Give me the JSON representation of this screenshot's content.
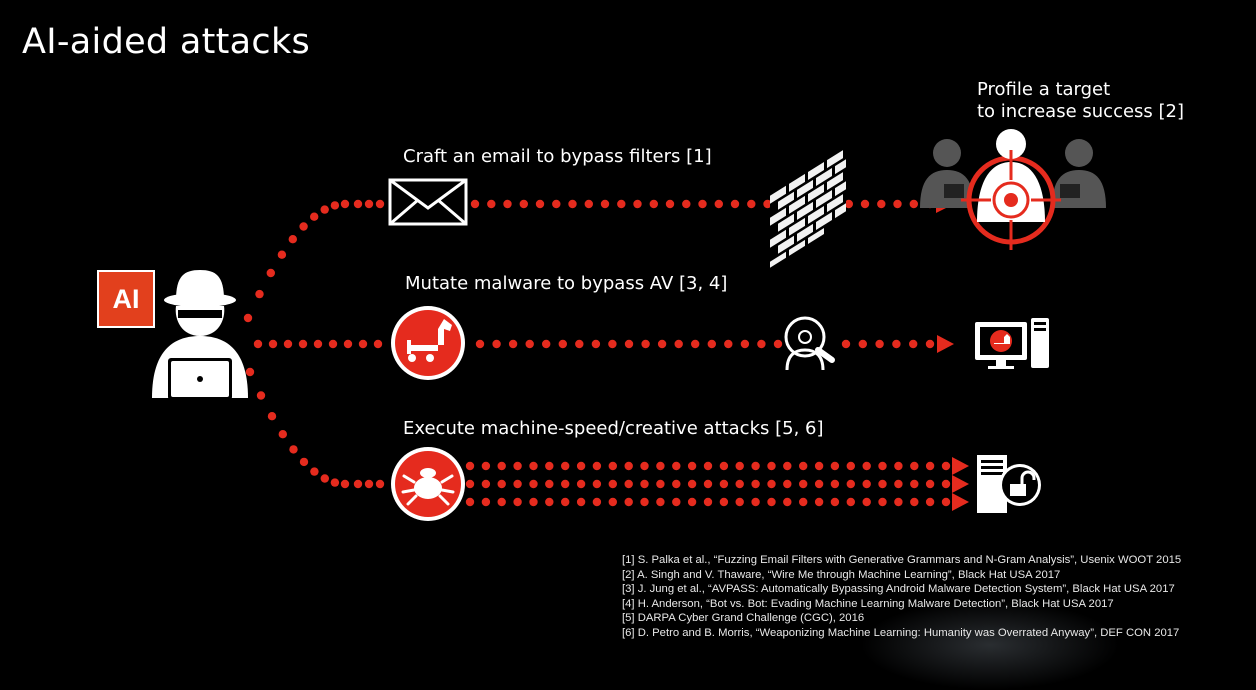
{
  "title": "AI-aided attacks",
  "badge": "AI",
  "paths": {
    "email": "Craft an email to bypass filters [1]",
    "profile_line1": "Profile a target",
    "profile_line2": "to increase success [2]",
    "malware": "Mutate malware to bypass AV [3, 4]",
    "execute": "Execute machine-speed/creative attacks [5, 6]"
  },
  "icons": {
    "attacker": "hacker-icon",
    "email": "envelope-icon",
    "firewall": "firewall-icon",
    "target": "target-profile-icon",
    "malware": "trojan-horse-icon",
    "scanner": "antivirus-scan-icon",
    "victim_pc": "infected-computer-icon",
    "bug": "bug-icon",
    "server": "unlocked-server-icon"
  },
  "colors": {
    "accent": "#e52b1e",
    "badge": "#e2401d",
    "background": "#000000"
  },
  "references": [
    "[1] S. Palka et al., “Fuzzing Email Filters with Generative Grammars and N-Gram Analysis”, Usenix WOOT 2015",
    "[2] A. Singh and V. Thaware, “Wire Me through Machine Learning”, Black Hat USA 2017",
    "[3] J. Jung et al., “AVPASS: Automatically Bypassing Android Malware Detection System”, Black Hat USA 2017",
    "[4] H. Anderson, “Bot vs. Bot: Evading Machine Learning Malware Detection”, Black Hat USA 2017",
    "[5] DARPA Cyber Grand Challenge (CGC), 2016",
    "[6] D. Petro and B. Morris, “Weaponizing Machine Learning: Humanity was Overrated Anyway”, DEF CON 2017"
  ]
}
